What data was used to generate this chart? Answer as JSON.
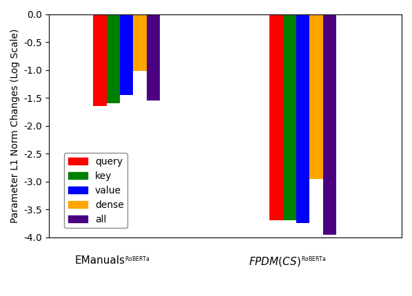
{
  "groups": [
    "EManuals_RoBERTa",
    "FPDM(CS)_RoBERTa"
  ],
  "categories": [
    "query",
    "key",
    "value",
    "dense",
    "all"
  ],
  "colors": [
    "#ff0000",
    "#008000",
    "#0000ff",
    "#ffa500",
    "#4b0082"
  ],
  "values": [
    [
      -1.65,
      -1.6,
      -1.45,
      -1.02,
      -1.55
    ],
    [
      -3.7,
      -3.7,
      -3.75,
      -2.95,
      -3.95
    ]
  ],
  "ylabel": "Parameter L1 Norm Changes (Log Scale)",
  "ylim": [
    -4.0,
    0.0
  ],
  "yticks": [
    0.0,
    -0.5,
    -1.0,
    -1.5,
    -2.0,
    -2.5,
    -3.0,
    -3.5,
    -4.0
  ],
  "bar_width": 0.038,
  "group_centers": [
    0.22,
    0.72
  ],
  "xlim": [
    0.0,
    1.0
  ],
  "legend_labels": [
    "query",
    "key",
    "value",
    "dense",
    "all"
  ],
  "ylabel_fontsize": 10,
  "legend_fontsize": 10,
  "tick_fontsize": 10,
  "label_fontsize": 11,
  "subscript_fontsize": 8
}
